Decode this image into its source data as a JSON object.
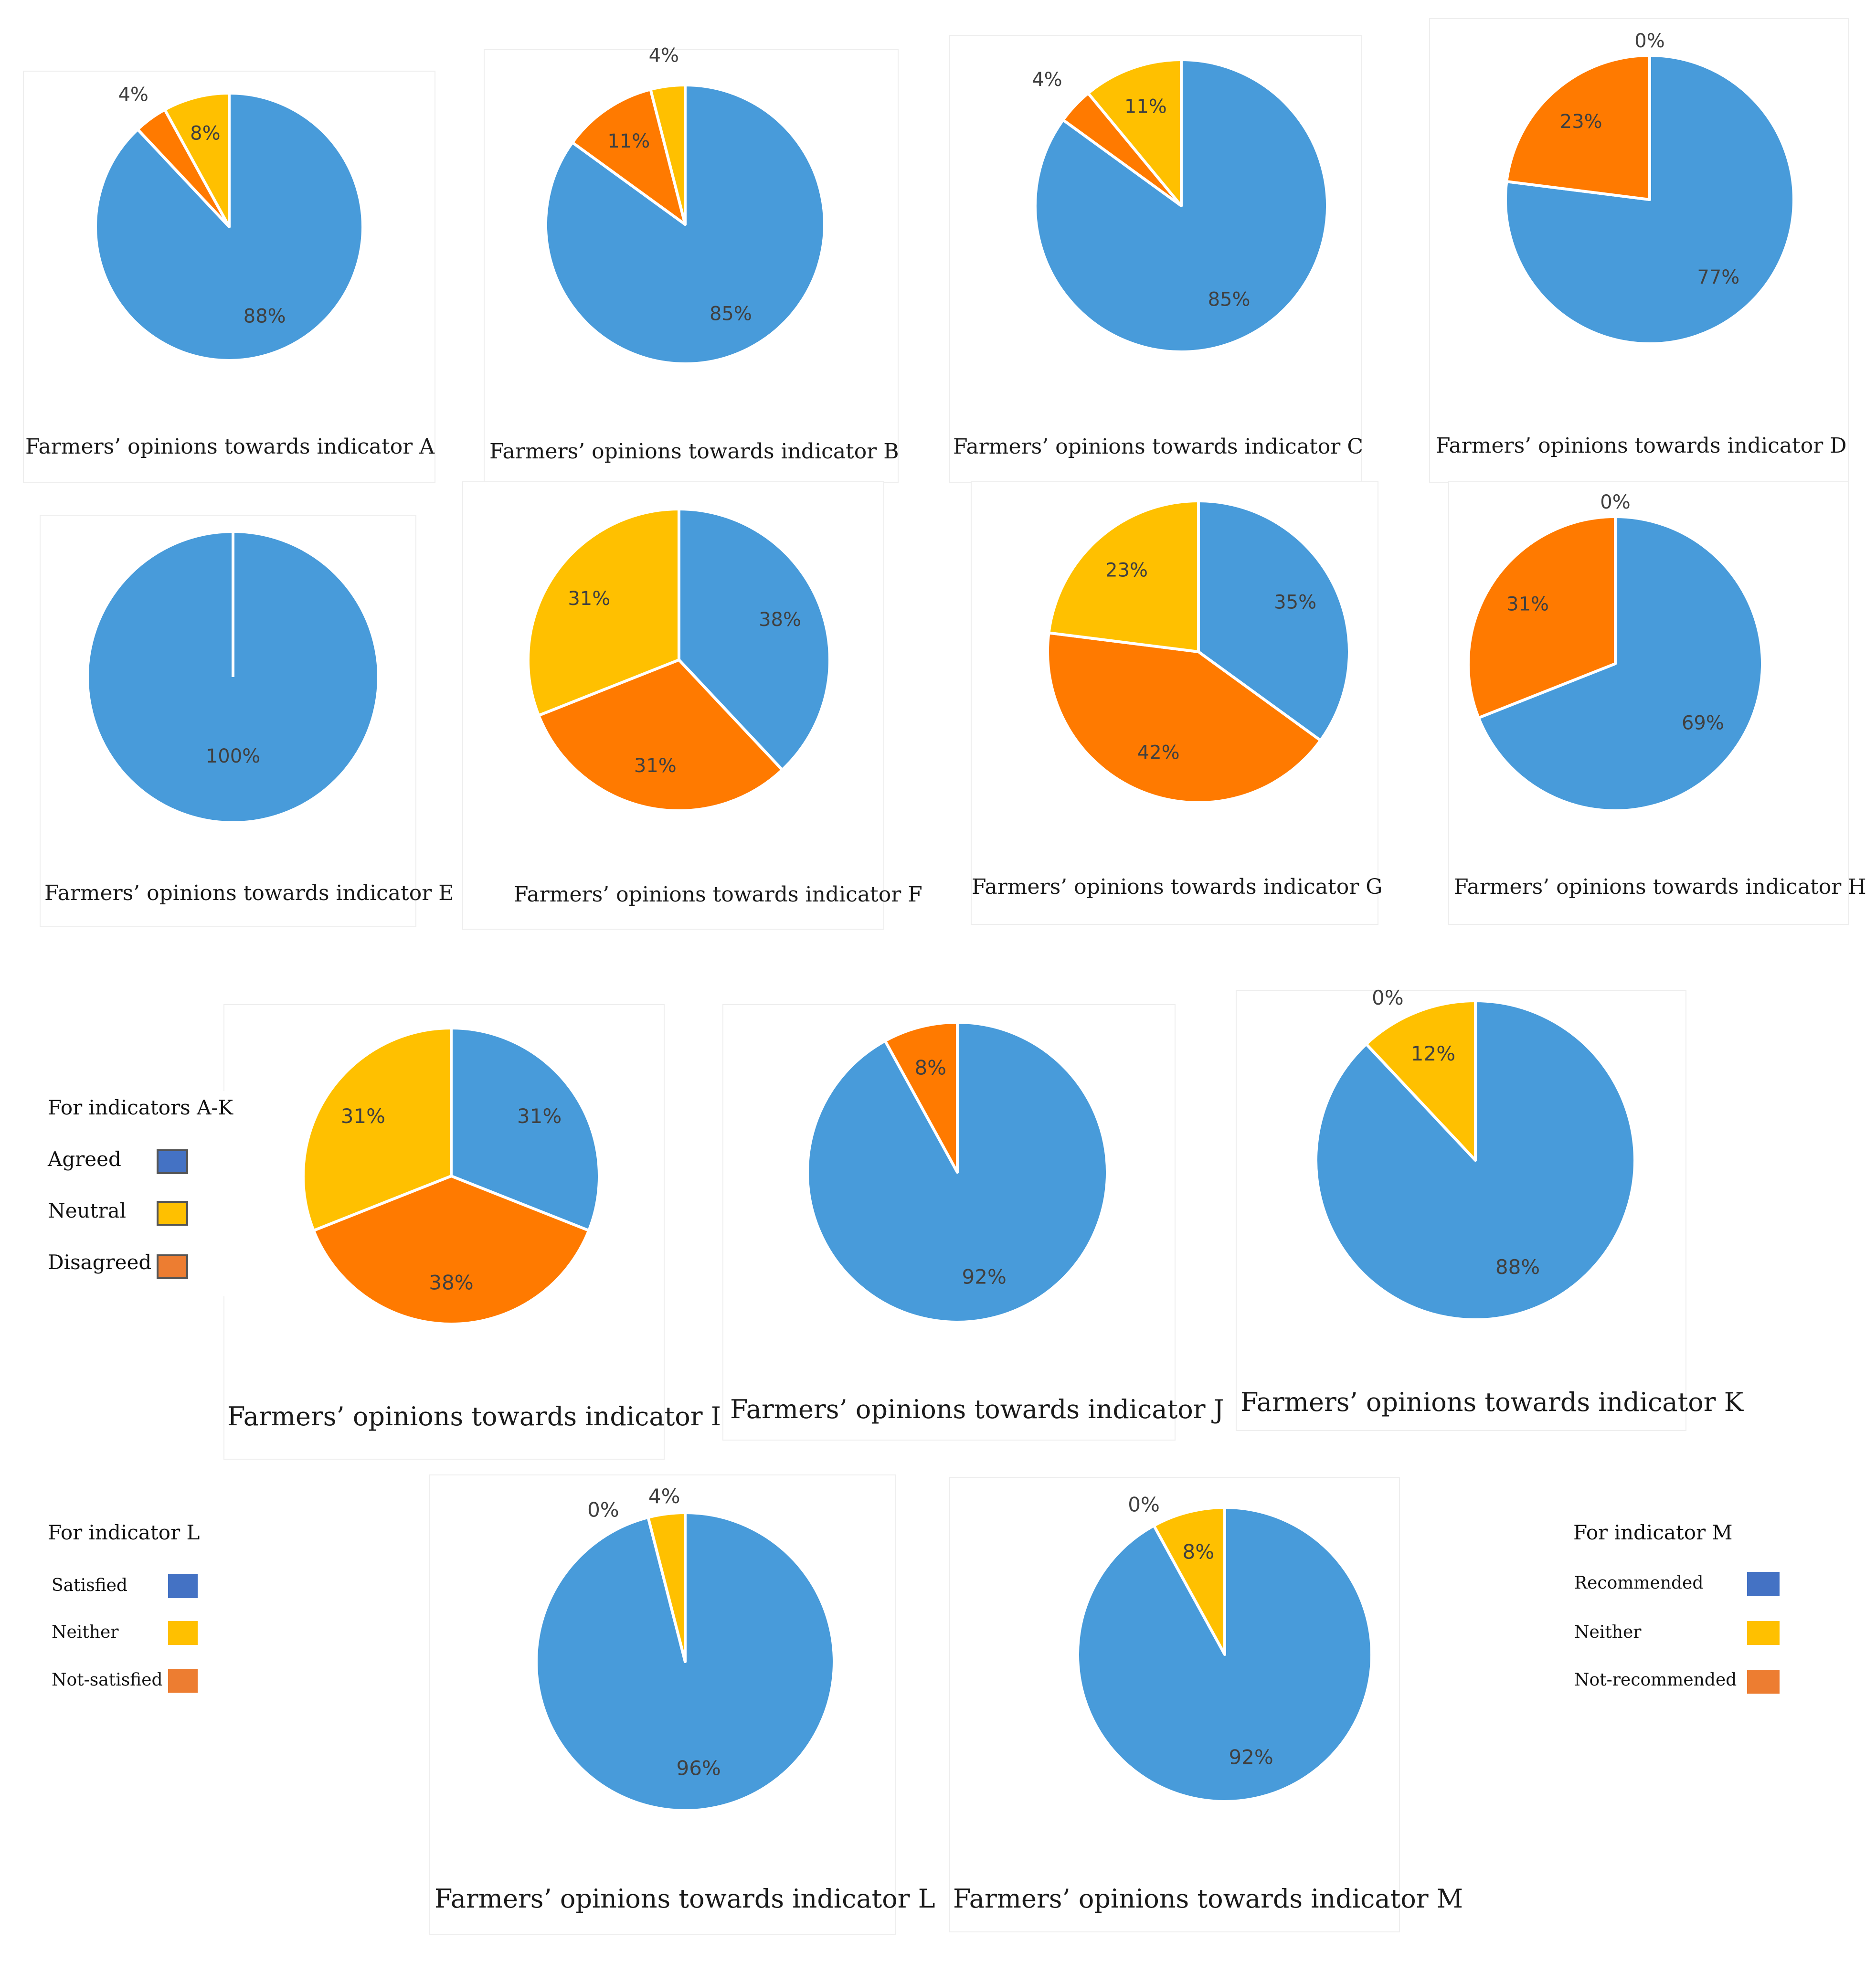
{
  "colors": {
    "agreed": "#489BDA",
    "neutral": "#FFC000",
    "disagreed": "#FF7A00",
    "legend_blue": "#4472C4",
    "legend_yellow": "#FFC000",
    "legend_orange": "#ED7D31",
    "label": "#404040"
  },
  "chart_data": [
    {
      "id": "A",
      "type": "pie",
      "title": "Farmers’ opinions towards indicator A",
      "slices": [
        {
          "name": "Agreed",
          "value": 88,
          "label": "88%"
        },
        {
          "name": "Disagreed",
          "value": 4,
          "label": "4%"
        },
        {
          "name": "Neutral",
          "value": 8,
          "label": "8%"
        }
      ]
    },
    {
      "id": "B",
      "type": "pie",
      "title": "Farmers’ opinions towards indicator B",
      "slices": [
        {
          "name": "Agreed",
          "value": 85,
          "label": "85%"
        },
        {
          "name": "Disagreed",
          "value": 11,
          "label": "11%"
        },
        {
          "name": "Neutral",
          "value": 4,
          "label": "4%"
        }
      ]
    },
    {
      "id": "C",
      "type": "pie",
      "title": "Farmers’ opinions towards indicator C",
      "slices": [
        {
          "name": "Agreed",
          "value": 85,
          "label": "85%"
        },
        {
          "name": "Disagreed",
          "value": 4,
          "label": "4%"
        },
        {
          "name": "Neutral",
          "value": 11,
          "label": "11%"
        }
      ]
    },
    {
      "id": "D",
      "type": "pie",
      "title": "Farmers’ opinions towards indicator D",
      "slices": [
        {
          "name": "Agreed",
          "value": 77,
          "label": "77%"
        },
        {
          "name": "Disagreed",
          "value": 23,
          "label": "23%"
        },
        {
          "name": "Neutral",
          "value": 0,
          "label": "0%"
        }
      ]
    },
    {
      "id": "E",
      "type": "pie",
      "title": "Farmers’ opinions towards indicator E",
      "slices": [
        {
          "name": "Agreed",
          "value": 100,
          "label": "100%"
        }
      ]
    },
    {
      "id": "F",
      "type": "pie",
      "title": "Farmers’ opinions towards indicator F",
      "slices": [
        {
          "name": "Agreed",
          "value": 38,
          "label": "38%"
        },
        {
          "name": "Disagreed",
          "value": 31,
          "label": "31%"
        },
        {
          "name": "Neutral",
          "value": 31,
          "label": "31%"
        }
      ]
    },
    {
      "id": "G",
      "type": "pie",
      "title": "Farmers’ opinions towards indicator G",
      "slices": [
        {
          "name": "Agreed",
          "value": 35,
          "label": "35%"
        },
        {
          "name": "Disagreed",
          "value": 42,
          "label": "42%"
        },
        {
          "name": "Neutral",
          "value": 23,
          "label": "23%"
        }
      ]
    },
    {
      "id": "H",
      "type": "pie",
      "title": "Farmers’ opinions towards indicator H",
      "slices": [
        {
          "name": "Agreed",
          "value": 69,
          "label": "69%"
        },
        {
          "name": "Disagreed",
          "value": 31,
          "label": "31%"
        },
        {
          "name": "Neutral",
          "value": 0,
          "label": "0%"
        }
      ]
    },
    {
      "id": "I",
      "type": "pie",
      "title": "Farmers’ opinions towards indicator I",
      "slices": [
        {
          "name": "Agreed",
          "value": 31,
          "label": "31%"
        },
        {
          "name": "Disagreed",
          "value": 38,
          "label": "38%"
        },
        {
          "name": "Neutral",
          "value": 31,
          "label": "31%"
        }
      ]
    },
    {
      "id": "J",
      "type": "pie",
      "title": "Farmers’ opinions towards indicator J",
      "slices": [
        {
          "name": "Agreed",
          "value": 92,
          "label": "92%"
        },
        {
          "name": "Disagreed",
          "value": 8,
          "label": "8%"
        }
      ]
    },
    {
      "id": "K",
      "type": "pie",
      "title": "Farmers’ opinions towards indicator K",
      "slices": [
        {
          "name": "Agreed",
          "value": 88,
          "label": "88%"
        },
        {
          "name": "Disagreed",
          "value": 0,
          "label": "0%"
        },
        {
          "name": "Neutral",
          "value": 12,
          "label": "12%"
        }
      ]
    },
    {
      "id": "L",
      "type": "pie",
      "title": "Farmers’ opinions towards indicator L",
      "slices": [
        {
          "name": "Satisfied",
          "value": 96,
          "label": "96%"
        },
        {
          "name": "Not-satisfied",
          "value": 0,
          "label": "0%"
        },
        {
          "name": "Neither",
          "value": 4,
          "label": "4%"
        }
      ]
    },
    {
      "id": "M",
      "type": "pie",
      "title": "Farmers’ opinions towards indicator M",
      "slices": [
        {
          "name": "Recommended",
          "value": 92,
          "label": "92%"
        },
        {
          "name": "Not-recommended",
          "value": 0,
          "label": "0%"
        },
        {
          "name": "Neither",
          "value": 8,
          "label": "8%"
        }
      ]
    }
  ],
  "legends": {
    "ak": {
      "title": "For indicators A-K",
      "items": [
        "Agreed",
        "Neutral",
        "Disagreed"
      ]
    },
    "l": {
      "title": "For indicator L",
      "items": [
        "Satisfied",
        "Neither",
        "Not-satisfied"
      ]
    },
    "m": {
      "title": "For indicator M",
      "items": [
        "Recommended",
        "Neither",
        "Not-recommended"
      ]
    }
  }
}
